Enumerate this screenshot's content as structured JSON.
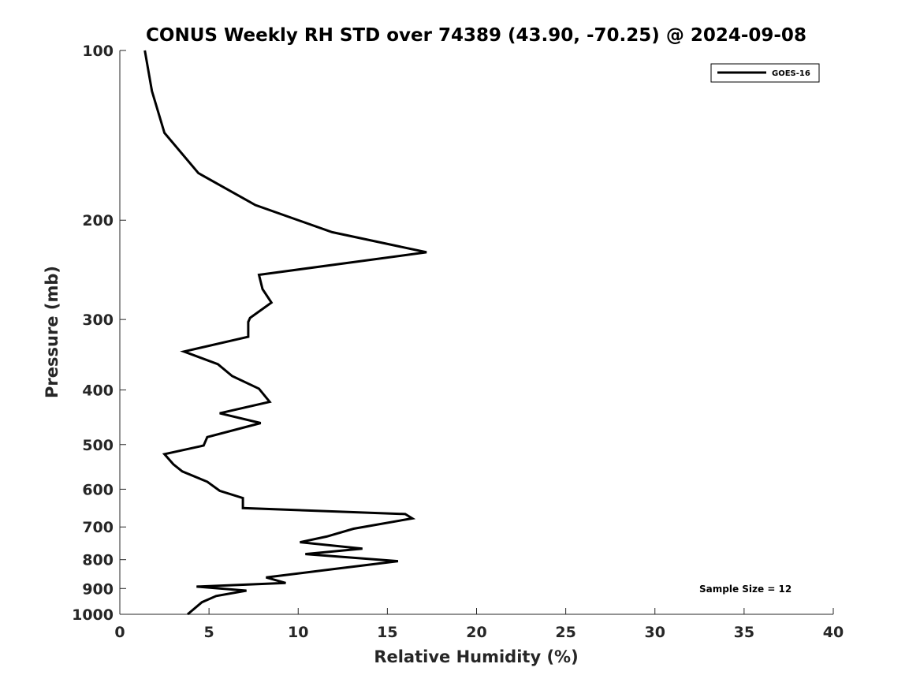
{
  "chart_data": {
    "type": "line",
    "title": "CONUS Weekly RH STD over 74389 (43.90, -70.25) @ 2024-09-08",
    "xlabel": "Relative Humidity (%)",
    "ylabel": "Pressure (mb)",
    "xlim": [
      0,
      40
    ],
    "ylim": [
      100,
      1000
    ],
    "yscale": "log",
    "yreversed": true,
    "xticks": [
      0,
      5,
      10,
      15,
      20,
      25,
      30,
      35,
      40
    ],
    "xtick_labels": [
      "0",
      "5",
      "10",
      "15",
      "20",
      "25",
      "30",
      "35",
      "40"
    ],
    "yticks": [
      100,
      200,
      300,
      400,
      500,
      600,
      700,
      800,
      900,
      1000
    ],
    "ytick_labels": [
      "100",
      "200",
      "300",
      "400",
      "500",
      "600",
      "700",
      "800",
      "900",
      "1000"
    ],
    "grid": false,
    "legend_position": "top-right",
    "series": [
      {
        "name": "GOES-16",
        "color": "#000000",
        "points": [
          [
            1.4,
            100
          ],
          [
            1.8,
            118
          ],
          [
            2.5,
            140
          ],
          [
            4.4,
            165
          ],
          [
            7.6,
            188
          ],
          [
            11.9,
            210
          ],
          [
            17.2,
            228
          ],
          [
            7.8,
            250
          ],
          [
            8.0,
            265
          ],
          [
            8.5,
            280
          ],
          [
            7.3,
            298
          ],
          [
            7.2,
            303
          ],
          [
            7.2,
            322
          ],
          [
            3.6,
            342
          ],
          [
            5.5,
            360
          ],
          [
            6.3,
            378
          ],
          [
            7.8,
            398
          ],
          [
            8.4,
            420
          ],
          [
            5.6,
            440
          ],
          [
            7.9,
            458
          ],
          [
            4.9,
            485
          ],
          [
            4.7,
            502
          ],
          [
            2.5,
            520
          ],
          [
            3.0,
            542
          ],
          [
            3.5,
            558
          ],
          [
            4.9,
            582
          ],
          [
            5.6,
            604
          ],
          [
            6.9,
            622
          ],
          [
            6.9,
            648
          ],
          [
            16.0,
            664
          ],
          [
            16.4,
            676
          ],
          [
            13.1,
            705
          ],
          [
            11.6,
            728
          ],
          [
            10.1,
            745
          ],
          [
            13.6,
            765
          ],
          [
            10.4,
            782
          ],
          [
            15.6,
            805
          ],
          [
            11.9,
            832
          ],
          [
            8.2,
            860
          ],
          [
            9.3,
            880
          ],
          [
            4.3,
            893
          ],
          [
            7.1,
            908
          ],
          [
            5.4,
            928
          ],
          [
            4.6,
            952
          ],
          [
            3.8,
            1000
          ]
        ]
      }
    ],
    "annotation": "Sample Size = 12"
  }
}
